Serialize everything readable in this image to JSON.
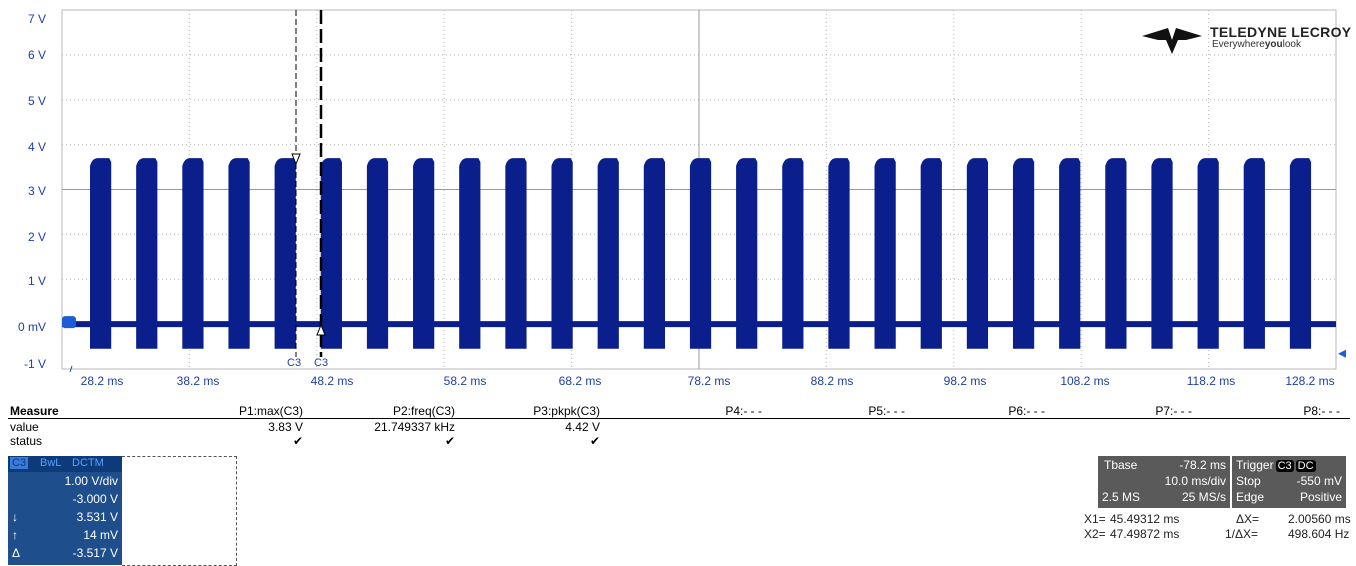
{
  "branding": {
    "name": "TELEDYNE LECROY",
    "tagline_pre": "Everywhere",
    "tagline_bold": "you",
    "tagline_post": "look"
  },
  "y_axis": {
    "ticks": [
      "7 V",
      "6 V",
      "5 V",
      "4 V",
      "3 V",
      "2 V",
      "1 V",
      "0 mV",
      "-1 V"
    ]
  },
  "x_axis": {
    "ticks": [
      "28.2 ms",
      "38.2 ms",
      "48.2 ms",
      "58.2 ms",
      "68.2 ms",
      "78.2 ms",
      "88.2 ms",
      "98.2 ms",
      "108.2 ms",
      "118.2 ms",
      "128.2 ms"
    ]
  },
  "cursor_labels": {
    "c1": "C3",
    "c2": "C3"
  },
  "colors": {
    "trace": "#0a1e8c",
    "axis_text": "#1e3ea8",
    "grid": "#b8b8b8",
    "channel_panel": "#1f4e8c"
  },
  "waveform": {
    "bursts": 27,
    "burst_period_ms": 3.8,
    "high_v": 3.7,
    "low_v": -0.55,
    "baseline_v": 0.0
  },
  "measure": {
    "title": "Measure",
    "row_labels": [
      "value",
      "status"
    ],
    "params": [
      {
        "label": "P1:max(C3)",
        "value": "3.83 V",
        "status": "✔"
      },
      {
        "label": "P2:freq(C3)",
        "value": "21.749337 kHz",
        "status": "✔"
      },
      {
        "label": "P3:pkpk(C3)",
        "value": "4.42 V",
        "status": "✔"
      },
      {
        "label": "P4:- - -",
        "value": "",
        "status": ""
      },
      {
        "label": "P5:- - -",
        "value": "",
        "status": ""
      },
      {
        "label": "P6:- - -",
        "value": "",
        "status": ""
      },
      {
        "label": "P7:- - -",
        "value": "",
        "status": ""
      },
      {
        "label": "P8:- - -",
        "value": "",
        "status": ""
      }
    ]
  },
  "channel": {
    "badges": [
      "C3",
      "BwL",
      "DCTM"
    ],
    "scale": "1.00 V/div",
    "offset": "-3.000 V",
    "cursor1": "3.531 V",
    "cursor2": "14 mV",
    "delta": "-3.517 V",
    "sym1": "↓",
    "sym2": "↑",
    "sym3": "Δ"
  },
  "timebase": {
    "label": "Tbase",
    "delay": "-78.2 ms",
    "div": "10.0 ms/div",
    "samples": "2.5 MS",
    "rate": "25 MS/s"
  },
  "trigger": {
    "label": "Trigger",
    "src": "C3",
    "coupling": "DC",
    "mode": "Stop",
    "level": "-550 mV",
    "type": "Edge",
    "slope": "Positive"
  },
  "cursors": {
    "x1_label": "X1=",
    "x1": "45.49312 ms",
    "dx_label": "ΔX=",
    "dx": "2.00560 ms",
    "x2_label": "X2=",
    "x2": "47.49872 ms",
    "inv_label": "1/ΔX=",
    "inv": "498.604 Hz"
  }
}
